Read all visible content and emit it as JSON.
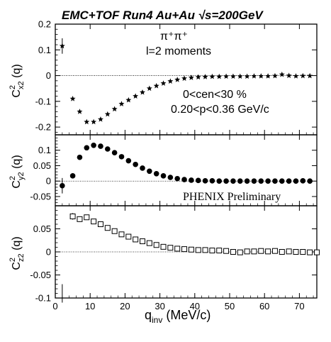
{
  "figure": {
    "title": "EMC+TOF Run4 Au+Au √s=200GeV",
    "x_axis_label": "q",
    "x_axis_label_sub": "inv",
    "x_axis_label_unit": " (MeV/c)",
    "annotations": {
      "pion_pair": "π⁺π⁺",
      "moments": "l=2 moments",
      "centrality": "0<cen<30 %",
      "momentum": "0.20<p<0.36 GeV/c",
      "preliminary": "PHENIX Preliminary"
    }
  },
  "chart_data": [
    {
      "type": "scatter",
      "ylabel": "C²x2 (q)",
      "ylabel_main": "C",
      "ylabel_sup": "2",
      "ylabel_sub": "x2",
      "ylabel_rest": " (q)",
      "marker": "star",
      "xlim": [
        0,
        75
      ],
      "ylim": [
        -0.23,
        0.2
      ],
      "yticks": [
        "0.2",
        "0.1",
        "0",
        "-0.1",
        "-0.2"
      ],
      "ytick_values": [
        0.2,
        0.1,
        0,
        -0.1,
        -0.2
      ],
      "zero_line": true,
      "series": [
        {
          "points": [
            {
              "x": 2,
              "y": 0.115,
              "err": 0.03
            },
            {
              "x": 5,
              "y": -0.09
            },
            {
              "x": 7,
              "y": -0.14
            },
            {
              "x": 9,
              "y": -0.18
            },
            {
              "x": 11,
              "y": -0.18
            },
            {
              "x": 13,
              "y": -0.17
            },
            {
              "x": 15,
              "y": -0.15
            },
            {
              "x": 17,
              "y": -0.13
            },
            {
              "x": 19,
              "y": -0.11
            },
            {
              "x": 21,
              "y": -0.095
            },
            {
              "x": 23,
              "y": -0.08
            },
            {
              "x": 25,
              "y": -0.065
            },
            {
              "x": 27,
              "y": -0.05
            },
            {
              "x": 29,
              "y": -0.04
            },
            {
              "x": 31,
              "y": -0.03
            },
            {
              "x": 33,
              "y": -0.022
            },
            {
              "x": 35,
              "y": -0.016
            },
            {
              "x": 37,
              "y": -0.011
            },
            {
              "x": 39,
              "y": -0.008
            },
            {
              "x": 41,
              "y": -0.006
            },
            {
              "x": 43,
              "y": -0.005
            },
            {
              "x": 45,
              "y": -0.004
            },
            {
              "x": 47,
              "y": -0.004
            },
            {
              "x": 49,
              "y": -0.003
            },
            {
              "x": 51,
              "y": -0.003
            },
            {
              "x": 53,
              "y": -0.003
            },
            {
              "x": 55,
              "y": -0.003
            },
            {
              "x": 57,
              "y": -0.002
            },
            {
              "x": 59,
              "y": -0.002
            },
            {
              "x": 61,
              "y": -0.002
            },
            {
              "x": 63,
              "y": -0.001
            },
            {
              "x": 65,
              "y": 0.004
            },
            {
              "x": 67,
              "y": 0.0
            },
            {
              "x": 69,
              "y": -0.002
            },
            {
              "x": 71,
              "y": -0.001
            },
            {
              "x": 73,
              "y": -0.001
            }
          ]
        }
      ]
    },
    {
      "type": "scatter",
      "ylabel": "C²y2 (q)",
      "ylabel_main": "C",
      "ylabel_sup": "2",
      "ylabel_sub": "y2",
      "ylabel_rest": " (q)",
      "marker": "filled-circle",
      "xlim": [
        0,
        75
      ],
      "ylim": [
        -0.08,
        0.15
      ],
      "yticks": [
        "0.1",
        "0.05",
        "0",
        "-0.05"
      ],
      "ytick_values": [
        0.1,
        0.05,
        0,
        -0.05
      ],
      "zero_line": true,
      "series": [
        {
          "points": [
            {
              "x": 2,
              "y": -0.015,
              "err": 0.025
            },
            {
              "x": 5,
              "y": 0.017,
              "err": 0.008
            },
            {
              "x": 7,
              "y": 0.077
            },
            {
              "x": 9,
              "y": 0.108
            },
            {
              "x": 11,
              "y": 0.116
            },
            {
              "x": 13,
              "y": 0.113
            },
            {
              "x": 15,
              "y": 0.104
            },
            {
              "x": 17,
              "y": 0.092
            },
            {
              "x": 19,
              "y": 0.079
            },
            {
              "x": 21,
              "y": 0.066
            },
            {
              "x": 23,
              "y": 0.054
            },
            {
              "x": 25,
              "y": 0.042
            },
            {
              "x": 27,
              "y": 0.032
            },
            {
              "x": 29,
              "y": 0.024
            },
            {
              "x": 31,
              "y": 0.017
            },
            {
              "x": 33,
              "y": 0.012
            },
            {
              "x": 35,
              "y": 0.008
            },
            {
              "x": 37,
              "y": 0.005
            },
            {
              "x": 39,
              "y": 0.003
            },
            {
              "x": 41,
              "y": 0.002
            },
            {
              "x": 43,
              "y": 0.001
            },
            {
              "x": 45,
              "y": 0.001
            },
            {
              "x": 47,
              "y": 0.0
            },
            {
              "x": 49,
              "y": 0.0
            },
            {
              "x": 51,
              "y": 0.0
            },
            {
              "x": 53,
              "y": 0.0
            },
            {
              "x": 55,
              "y": 0.0
            },
            {
              "x": 57,
              "y": 0.0
            },
            {
              "x": 59,
              "y": 0.0
            },
            {
              "x": 61,
              "y": 0.0
            },
            {
              "x": 63,
              "y": 0.0
            },
            {
              "x": 65,
              "y": 0.0
            },
            {
              "x": 67,
              "y": 0.0
            },
            {
              "x": 69,
              "y": 0.0
            },
            {
              "x": 71,
              "y": 0.001
            },
            {
              "x": 73,
              "y": 0.0
            }
          ]
        }
      ]
    },
    {
      "type": "scatter",
      "ylabel": "C²z2 (q)",
      "ylabel_main": "C",
      "ylabel_sup": "2",
      "ylabel_sub": "z2",
      "ylabel_rest": " (q)",
      "marker": "open-square",
      "xlim": [
        0,
        75
      ],
      "ylim": [
        -0.1,
        0.1
      ],
      "yticks": [
        "0.05",
        "0",
        "-0.05",
        "-0.1"
      ],
      "ytick_values": [
        0.05,
        0,
        -0.05,
        -0.1
      ],
      "xticks": [
        "0",
        "10",
        "20",
        "30",
        "40",
        "50",
        "60",
        "70"
      ],
      "xtick_values": [
        0,
        10,
        20,
        30,
        40,
        50,
        60,
        70
      ],
      "zero_line": true,
      "series": [
        {
          "points": [
            {
              "x": 2,
              "y": -0.09,
              "err": 0.02,
              "bar_only": true
            },
            {
              "x": 5,
              "y": 0.077,
              "err": 0.007
            },
            {
              "x": 7,
              "y": 0.071,
              "err": 0.006
            },
            {
              "x": 9,
              "y": 0.075,
              "err": 0.005
            },
            {
              "x": 11,
              "y": 0.066,
              "err": 0.004
            },
            {
              "x": 13,
              "y": 0.06
            },
            {
              "x": 15,
              "y": 0.052
            },
            {
              "x": 17,
              "y": 0.045
            },
            {
              "x": 19,
              "y": 0.038
            },
            {
              "x": 21,
              "y": 0.033
            },
            {
              "x": 23,
              "y": 0.027
            },
            {
              "x": 25,
              "y": 0.023
            },
            {
              "x": 27,
              "y": 0.019
            },
            {
              "x": 29,
              "y": 0.015
            },
            {
              "x": 31,
              "y": 0.011
            },
            {
              "x": 33,
              "y": 0.009
            },
            {
              "x": 35,
              "y": 0.007
            },
            {
              "x": 37,
              "y": 0.006
            },
            {
              "x": 39,
              "y": 0.005
            },
            {
              "x": 41,
              "y": 0.004
            },
            {
              "x": 43,
              "y": 0.004
            },
            {
              "x": 45,
              "y": 0.003
            },
            {
              "x": 47,
              "y": 0.003
            },
            {
              "x": 49,
              "y": 0.002
            },
            {
              "x": 51,
              "y": 0.0
            },
            {
              "x": 53,
              "y": -0.001
            },
            {
              "x": 55,
              "y": 0.001
            },
            {
              "x": 57,
              "y": 0.001
            },
            {
              "x": 59,
              "y": 0.002
            },
            {
              "x": 61,
              "y": 0.001
            },
            {
              "x": 63,
              "y": 0.002
            },
            {
              "x": 65,
              "y": 0.0
            },
            {
              "x": 67,
              "y": 0.001
            },
            {
              "x": 69,
              "y": 0.0
            },
            {
              "x": 71,
              "y": 0.0
            },
            {
              "x": 73,
              "y": -0.001
            },
            {
              "x": 75,
              "y": -0.001
            }
          ]
        }
      ]
    }
  ]
}
